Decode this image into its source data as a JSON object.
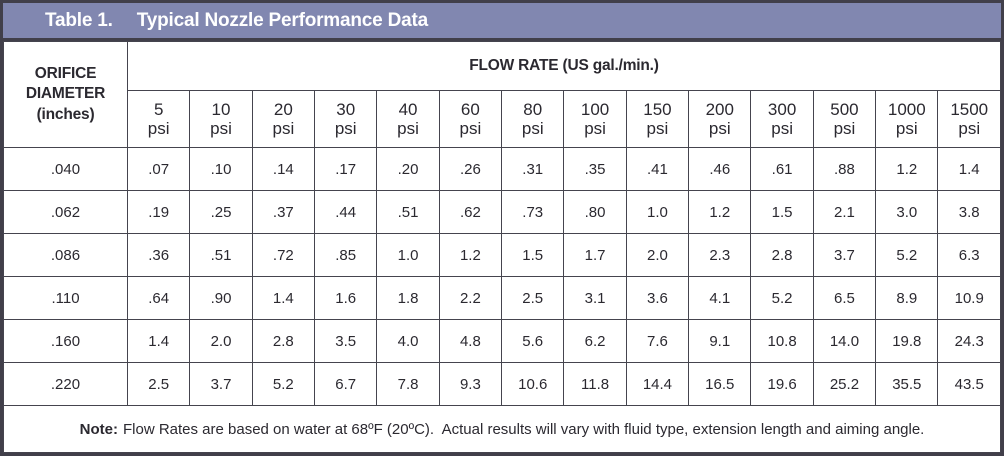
{
  "title": {
    "label": "Table 1.",
    "text": "Typical Nozzle Performance Data"
  },
  "header": {
    "row_header": "ORIFICE\nDIAMETER\n(inches)",
    "flow_rate": "FLOW RATE (US gal./min.)",
    "pressures": [
      "5",
      "10",
      "20",
      "30",
      "40",
      "60",
      "80",
      "100",
      "150",
      "200",
      "300",
      "500",
      "1000",
      "1500"
    ],
    "psi_label": "psi"
  },
  "rows": [
    {
      "orifice": ".040",
      "values": [
        ".07",
        ".10",
        ".14",
        ".17",
        ".20",
        ".26",
        ".31",
        ".35",
        ".41",
        ".46",
        ".61",
        ".88",
        "1.2",
        "1.4"
      ]
    },
    {
      "orifice": ".062",
      "values": [
        ".19",
        ".25",
        ".37",
        ".44",
        ".51",
        ".62",
        ".73",
        ".80",
        "1.0",
        "1.2",
        "1.5",
        "2.1",
        "3.0",
        "3.8"
      ]
    },
    {
      "orifice": ".086",
      "values": [
        ".36",
        ".51",
        ".72",
        ".85",
        "1.0",
        "1.2",
        "1.5",
        "1.7",
        "2.0",
        "2.3",
        "2.8",
        "3.7",
        "5.2",
        "6.3"
      ]
    },
    {
      "orifice": ".110",
      "values": [
        ".64",
        ".90",
        "1.4",
        "1.6",
        "1.8",
        "2.2",
        "2.5",
        "3.1",
        "3.6",
        "4.1",
        "5.2",
        "6.5",
        "8.9",
        "10.9"
      ]
    },
    {
      "orifice": ".160",
      "values": [
        "1.4",
        "2.0",
        "2.8",
        "3.5",
        "4.0",
        "4.8",
        "5.6",
        "6.2",
        "7.6",
        "9.1",
        "10.8",
        "14.0",
        "19.8",
        "24.3"
      ]
    },
    {
      "orifice": ".220",
      "values": [
        "2.5",
        "3.7",
        "5.2",
        "6.7",
        "7.8",
        "9.3",
        "10.6",
        "11.8",
        "14.4",
        "16.5",
        "19.6",
        "25.2",
        "35.5",
        "43.5"
      ]
    }
  ],
  "note": {
    "label": "Note:",
    "text": "Flow Rates are based on water at 68ºF (20ºC).  Actual results will vary with fluid type, extension length and aiming angle."
  },
  "colors": {
    "title_bar_bg": "#8187b0",
    "title_text": "#ffffff",
    "border": "#413f4a",
    "text": "#2b2930"
  }
}
